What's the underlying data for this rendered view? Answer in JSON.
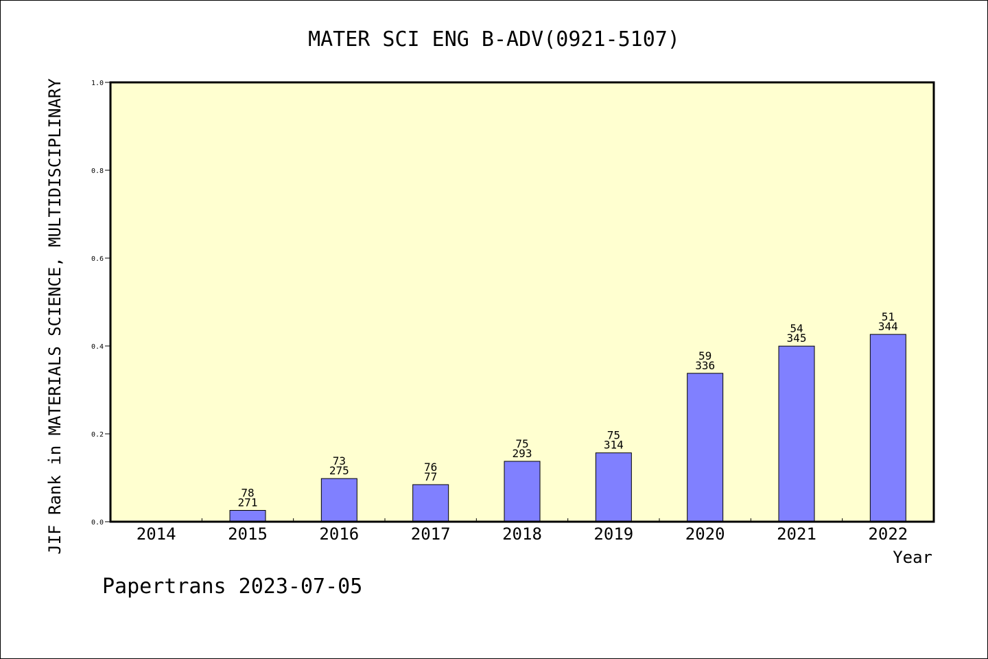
{
  "chart_data": {
    "type": "bar",
    "title": "MATER SCI ENG B-ADV(0921-5107)",
    "ylabel": "JIF Rank in MATERIALS SCIENCE, MULTIDISCIPLINARY",
    "xlabel": "Year",
    "categories": [
      "2014",
      "2015",
      "2016",
      "2017",
      "2018",
      "2019",
      "2020",
      "2021",
      "2022"
    ],
    "values": [
      null,
      0.0258,
      0.0982,
      0.0844,
      0.1375,
      0.1567,
      0.3378,
      0.3997,
      0.4264
    ],
    "data_labels": [
      null,
      {
        "rank": "78",
        "total": "271"
      },
      {
        "rank": "73",
        "total": "275"
      },
      {
        "rank": "76",
        "total": "77"
      },
      {
        "rank": "75",
        "total": "293"
      },
      {
        "rank": "75",
        "total": "314"
      },
      {
        "rank": "59",
        "total": "336"
      },
      {
        "rank": "54",
        "total": "345"
      },
      {
        "rank": "51",
        "total": "344"
      }
    ],
    "ylim": [
      0.0,
      1.0
    ],
    "yticks": [
      "0.0",
      "0.2",
      "0.4",
      "0.6",
      "0.8",
      "1.0"
    ],
    "grid": false,
    "legend": "none"
  },
  "footer": {
    "credit": "Papertrans 2023-07-05"
  },
  "colors": {
    "plot_background": "#FFFFD0",
    "bar_fill": "#8080FF",
    "axis": "#000000"
  }
}
